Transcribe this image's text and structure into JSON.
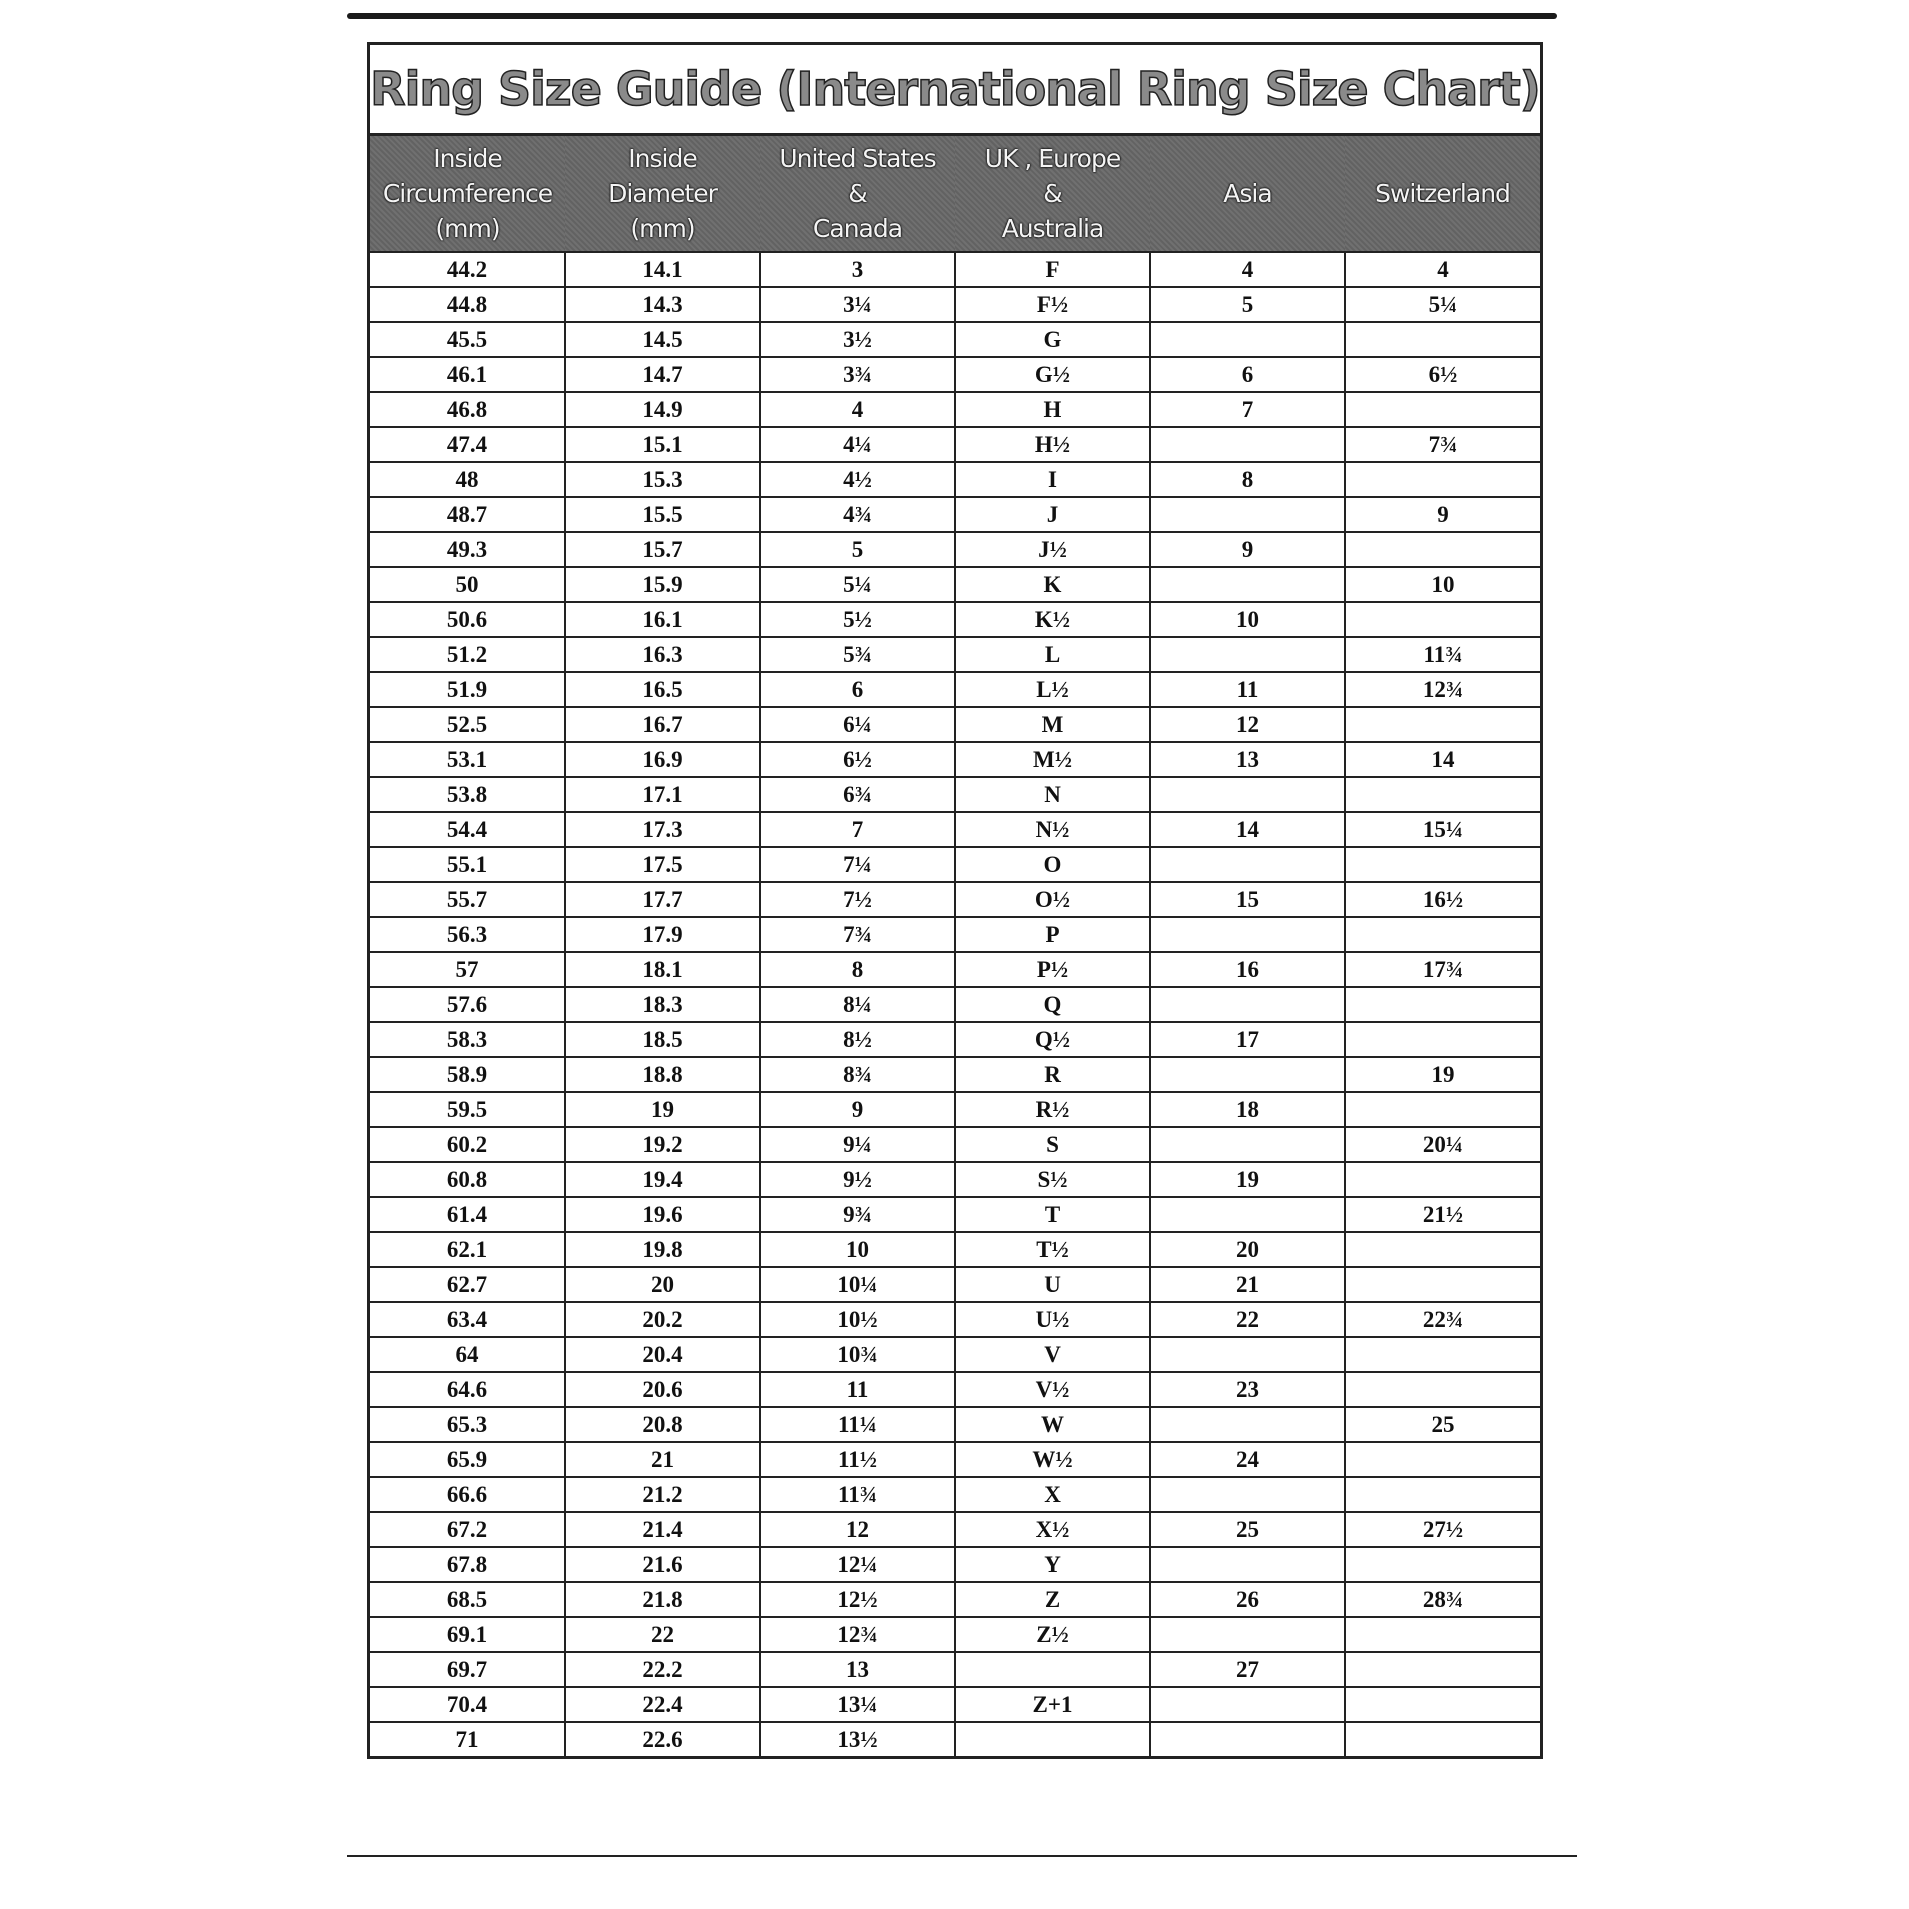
{
  "title": "Ring  Size  Guide (International Ring Size Chart)",
  "columns": [
    "Inside\nCircumference\n(mm)",
    "Inside\nDiameter\n(mm)",
    "United States\n&\nCanada",
    "UK , Europe\n&\nAustralia",
    "Asia",
    "Switzerland"
  ],
  "rows": [
    [
      "44.2",
      "14.1",
      "3",
      "F",
      "4",
      "4"
    ],
    [
      "44.8",
      "14.3",
      "3¼",
      "F½",
      "5",
      "5¼"
    ],
    [
      "45.5",
      "14.5",
      "3½",
      "G",
      "",
      ""
    ],
    [
      "46.1",
      "14.7",
      "3¾",
      "G½",
      "6",
      "6½"
    ],
    [
      "46.8",
      "14.9",
      "4",
      "H",
      "7",
      ""
    ],
    [
      "47.4",
      "15.1",
      "4¼",
      "H½",
      "",
      "7¾"
    ],
    [
      "48",
      "15.3",
      "4½",
      "I",
      "8",
      ""
    ],
    [
      "48.7",
      "15.5",
      "4¾",
      "J",
      "",
      "9"
    ],
    [
      "49.3",
      "15.7",
      "5",
      "J½",
      "9",
      ""
    ],
    [
      "50",
      "15.9",
      "5¼",
      "K",
      "",
      "10"
    ],
    [
      "50.6",
      "16.1",
      "5½",
      "K½",
      "10",
      ""
    ],
    [
      "51.2",
      "16.3",
      "5¾",
      "L",
      "",
      "11¾"
    ],
    [
      "51.9",
      "16.5",
      "6",
      "L½",
      "11",
      "12¾"
    ],
    [
      "52.5",
      "16.7",
      "6¼",
      "M",
      "12",
      ""
    ],
    [
      "53.1",
      "16.9",
      "6½",
      "M½",
      "13",
      "14"
    ],
    [
      "53.8",
      "17.1",
      "6¾",
      "N",
      "",
      ""
    ],
    [
      "54.4",
      "17.3",
      "7",
      "N½",
      "14",
      "15¼"
    ],
    [
      "55.1",
      "17.5",
      "7¼",
      "O",
      "",
      ""
    ],
    [
      "55.7",
      "17.7",
      "7½",
      "O½",
      "15",
      "16½"
    ],
    [
      "56.3",
      "17.9",
      "7¾",
      "P",
      "",
      ""
    ],
    [
      "57",
      "18.1",
      "8",
      "P½",
      "16",
      "17¾"
    ],
    [
      "57.6",
      "18.3",
      "8¼",
      "Q",
      "",
      ""
    ],
    [
      "58.3",
      "18.5",
      "8½",
      "Q½",
      "17",
      ""
    ],
    [
      "58.9",
      "18.8",
      "8¾",
      "R",
      "",
      "19"
    ],
    [
      "59.5",
      "19",
      "9",
      "R½",
      "18",
      ""
    ],
    [
      "60.2",
      "19.2",
      "9¼",
      "S",
      "",
      "20¼"
    ],
    [
      "60.8",
      "19.4",
      "9½",
      "S½",
      "19",
      ""
    ],
    [
      "61.4",
      "19.6",
      "9¾",
      "T",
      "",
      "21½"
    ],
    [
      "62.1",
      "19.8",
      "10",
      "T½",
      "20",
      ""
    ],
    [
      "62.7",
      "20",
      "10¼",
      "U",
      "21",
      ""
    ],
    [
      "63.4",
      "20.2",
      "10½",
      "U½",
      "22",
      "22¾"
    ],
    [
      "64",
      "20.4",
      "10¾",
      "V",
      "",
      ""
    ],
    [
      "64.6",
      "20.6",
      "11",
      "V½",
      "23",
      ""
    ],
    [
      "65.3",
      "20.8",
      "11¼",
      "W",
      "",
      "25"
    ],
    [
      "65.9",
      "21",
      "11½",
      "W½",
      "24",
      ""
    ],
    [
      "66.6",
      "21.2",
      "11¾",
      "X",
      "",
      ""
    ],
    [
      "67.2",
      "21.4",
      "12",
      "X½",
      "25",
      "27½"
    ],
    [
      "67.8",
      "21.6",
      "12¼",
      "Y",
      "",
      ""
    ],
    [
      "68.5",
      "21.8",
      "12½",
      "Z",
      "26",
      "28¾"
    ],
    [
      "69.1",
      "22",
      "12¾",
      "Z½",
      "",
      ""
    ],
    [
      "69.7",
      "22.2",
      "13",
      "",
      "27",
      ""
    ],
    [
      "70.4",
      "22.4",
      "13¼",
      "Z+1",
      "",
      ""
    ],
    [
      "71",
      "22.6",
      "13½",
      "",
      "",
      ""
    ]
  ]
}
